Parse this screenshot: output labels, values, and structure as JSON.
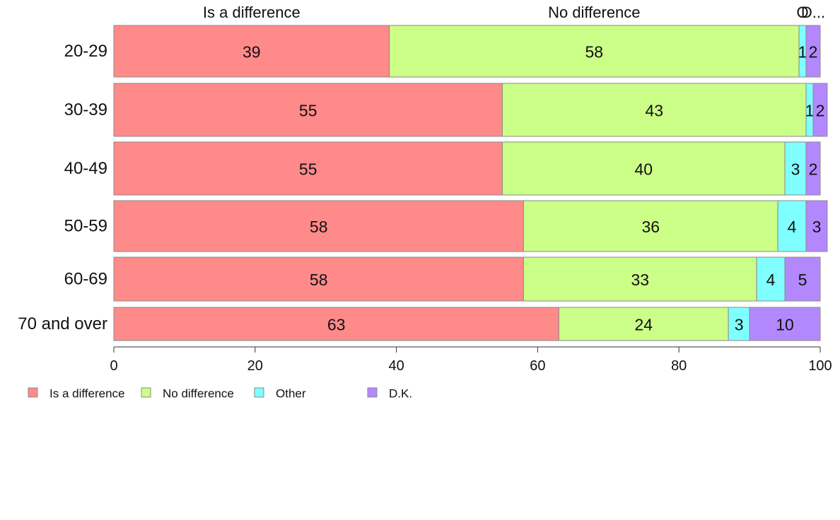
{
  "chart_data": {
    "type": "bar",
    "orientation": "horizontal",
    "stacked": true,
    "categories": [
      "20-29",
      "30-39",
      "40-49",
      "50-59",
      "60-69",
      "70 and over"
    ],
    "series": [
      {
        "name": "Is a difference",
        "color": "#ff8a8a",
        "values": [
          39,
          55,
          55,
          58,
          58,
          63
        ],
        "labels": [
          "39",
          "55",
          "55",
          "58",
          "58",
          "63"
        ]
      },
      {
        "name": "No difference",
        "color": "#ccff88",
        "values": [
          58,
          43,
          40,
          36,
          33,
          24
        ],
        "labels": [
          "58",
          "43",
          "40",
          "36",
          "33",
          "24"
        ]
      },
      {
        "name": "Other",
        "color": "#7fffff",
        "values": [
          1,
          1,
          3,
          4,
          4,
          3
        ],
        "labels": [
          "1",
          "1",
          "3",
          "4",
          "4",
          "3"
        ]
      },
      {
        "name": "D.K.",
        "color": "#b388ff",
        "values": [
          2,
          2,
          2,
          3,
          5,
          10
        ],
        "labels": [
          "2",
          "2",
          "2",
          "3",
          "5",
          "10"
        ]
      }
    ],
    "top_labels": [
      "Is a difference",
      "No difference",
      "O",
      "D..."
    ],
    "xlim": [
      0,
      100
    ],
    "x_ticks": [
      "0",
      "20",
      "40",
      "60",
      "80",
      "100"
    ],
    "grid": false,
    "legend_position": "bottom-left"
  }
}
